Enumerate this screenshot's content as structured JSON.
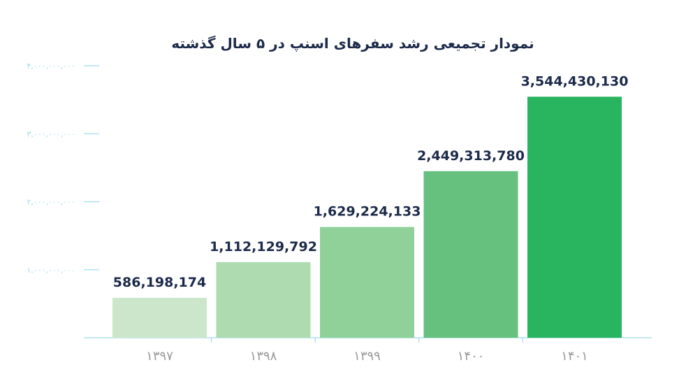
{
  "chart_data": {
    "type": "bar",
    "title": "نمودار تجمیعی رشد سفرهای اسنپ در ۵ سال گذشته",
    "categories": [
      "۱۳۹۷",
      "۱۳۹۸",
      "۱۳۹۹",
      "۱۴۰۰",
      "۱۴۰۱"
    ],
    "values": [
      586198174,
      1112129792,
      1629224133,
      2449313780,
      3544430130
    ],
    "value_labels": [
      "586,198,174",
      "1,112,129,792",
      "1,629,224,133",
      "2,449,313,780",
      "3,544,430,130"
    ],
    "bar_colors": [
      "#cce6cc",
      "#aedcb0",
      "#8fd199",
      "#66c17f",
      "#29b45f"
    ],
    "ylim": [
      0,
      4000000000
    ],
    "yticks": [
      {
        "value": 1000000000,
        "label": "۱,۰۰۰,۰۰۰,۰۰۰"
      },
      {
        "value": 2000000000,
        "label": "۲,۰۰۰,۰۰۰,۰۰۰"
      },
      {
        "value": 3000000000,
        "label": "۳,۰۰۰,۰۰۰,۰۰۰"
      },
      {
        "value": 4000000000,
        "label": "۴,۰۰۰,۰۰۰,۰۰۰"
      }
    ],
    "xlabel": "",
    "ylabel": "",
    "grid": false,
    "colors": {
      "tick": "#9fdcef",
      "title": "#1c2a4a",
      "value_label": "#1c2a4a",
      "category": "#9a9a9a",
      "axis": "#9fdcef"
    }
  }
}
